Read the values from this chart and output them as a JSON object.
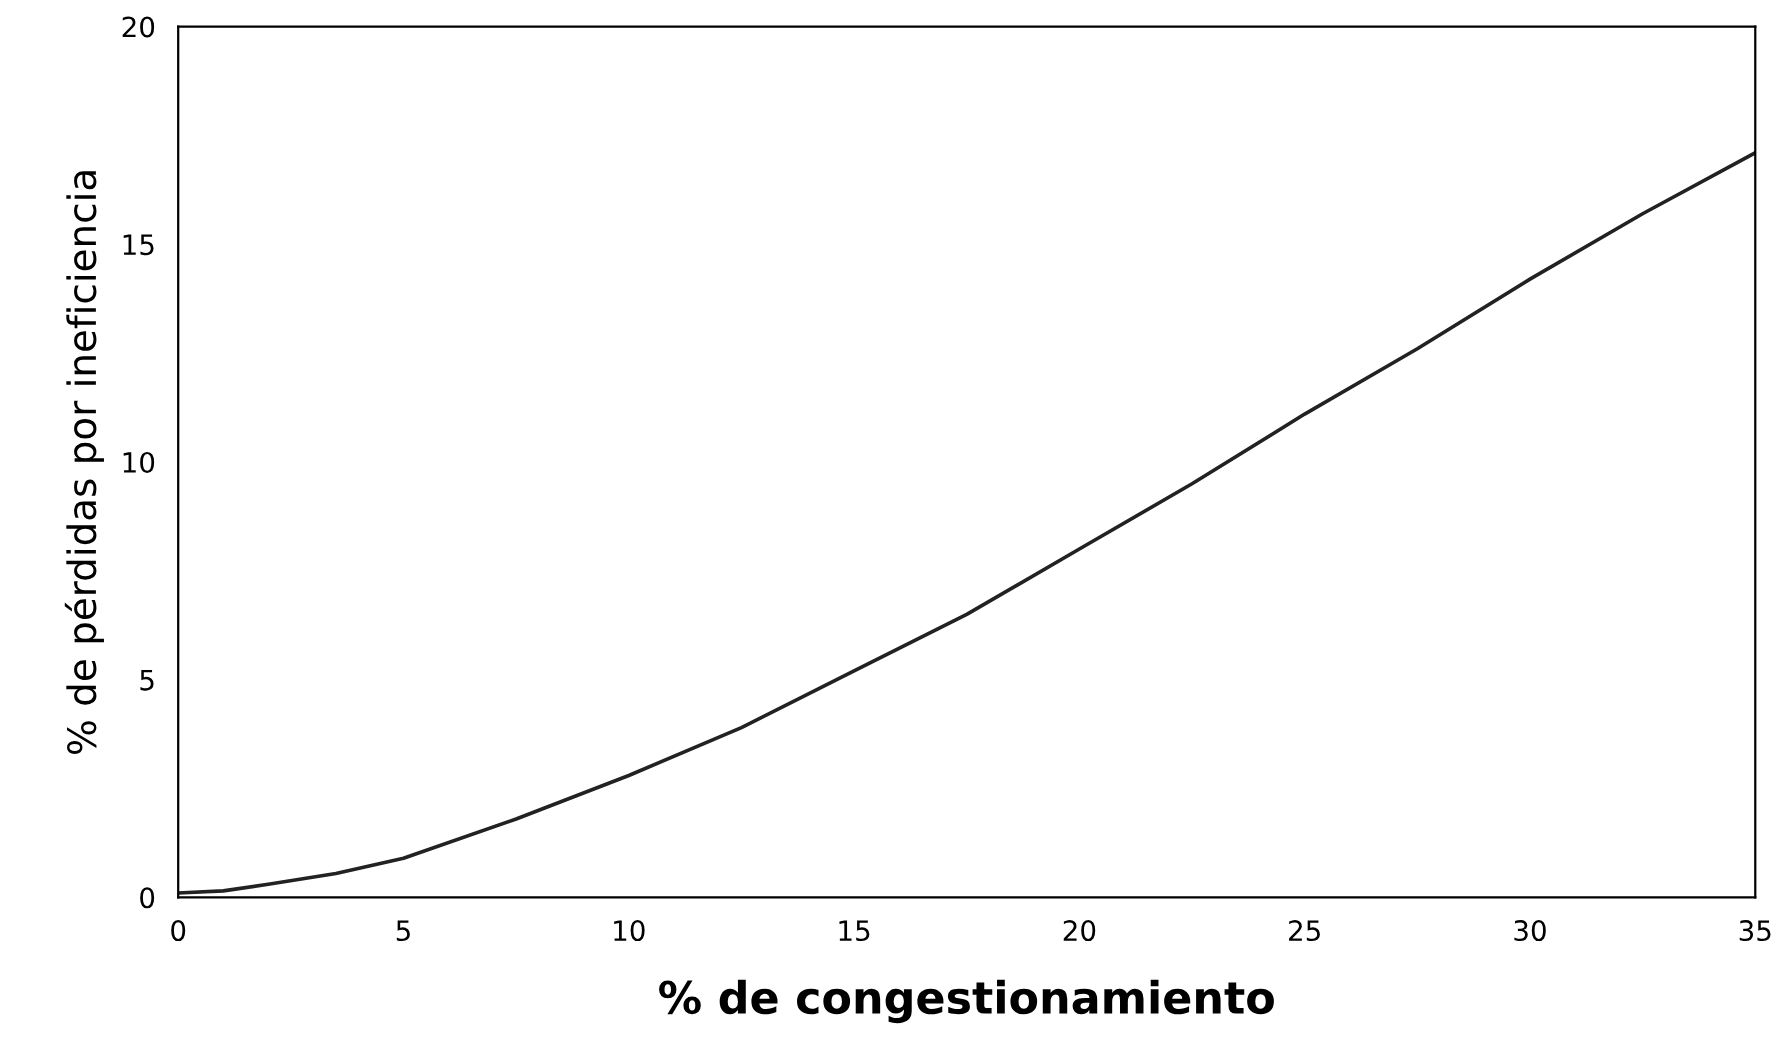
{
  "chart_data": {
    "type": "line",
    "xlabel": "% de congestionamiento",
    "ylabel": "% de pérdidas por ineficiencia",
    "x": [
      0,
      1,
      2,
      3.5,
      5,
      7.5,
      10,
      12.5,
      15,
      17.5,
      20,
      22.5,
      25,
      27.5,
      30,
      32.5,
      35
    ],
    "series": [
      {
        "color": "#222222",
        "values": [
          0.1,
          0.15,
          0.3,
          0.55,
          0.9,
          1.8,
          2.8,
          3.9,
          5.2,
          6.5,
          8.0,
          9.5,
          11.1,
          12.6,
          14.2,
          15.7,
          17.1
        ]
      }
    ],
    "xlim": [
      0,
      35
    ],
    "ylim": [
      0,
      20
    ],
    "xticks": [
      0,
      5,
      10,
      15,
      20,
      25,
      30,
      35
    ],
    "yticks": [
      0,
      5,
      10,
      15,
      20
    ],
    "grid": false,
    "legend": false,
    "marker": "none",
    "line_style": "solid"
  }
}
